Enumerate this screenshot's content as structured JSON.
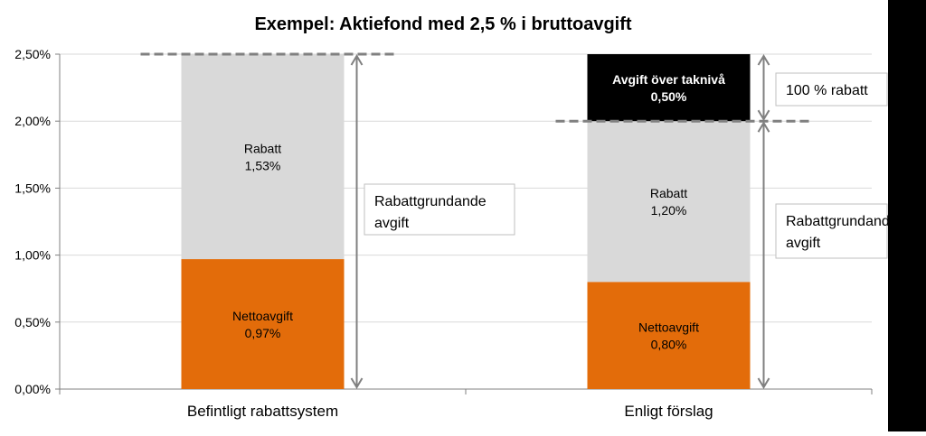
{
  "chart_data": {
    "type": "bar",
    "stacked": true,
    "title": "Exempel: Aktiefond med 2,5 % i bruttoavgift",
    "categories": [
      "Befintligt rabattsystem",
      "Enligt förslag"
    ],
    "series": [
      {
        "key": "netto",
        "values": [
          0.97,
          0.8
        ],
        "color": "#E36C0A",
        "labels": [
          [
            "Nettoavgift",
            "0,97%"
          ],
          [
            "Nettoavgift",
            "0,80%"
          ]
        ]
      },
      {
        "key": "rabatt",
        "values": [
          1.53,
          1.2
        ],
        "color": "#D9D9D9",
        "labels": [
          [
            "Rabatt",
            "1,53%"
          ],
          [
            "Rabatt",
            "1,20%"
          ]
        ]
      },
      {
        "key": "over",
        "values": [
          0,
          0.5
        ],
        "color": "#000000",
        "labels": [
          [
            "",
            ""
          ],
          [
            "Avgift över taknivå",
            "0,50%"
          ]
        ]
      }
    ],
    "yticks": [
      "0,00%",
      "0,50%",
      "1,00%",
      "1,50%",
      "2,00%",
      "2,50%"
    ],
    "ylim": [
      0,
      2.5
    ],
    "grid": true,
    "annotations": {
      "left_box": [
        "Rabattgrundande",
        "avgift"
      ],
      "right_box": [
        "Rabattgrundande",
        "avgift"
      ],
      "top_box": "100 % rabatt"
    }
  }
}
